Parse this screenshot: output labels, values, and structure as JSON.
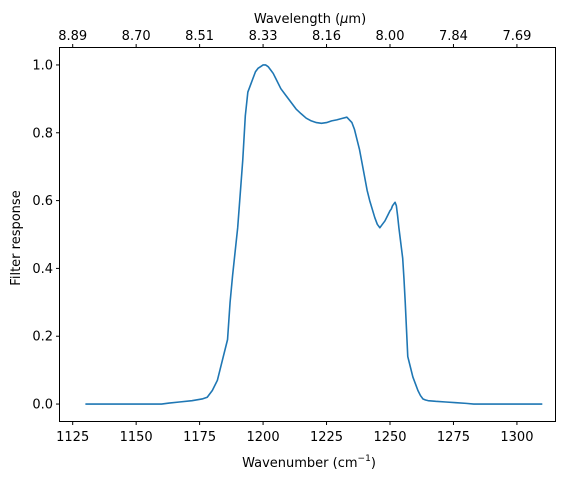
{
  "chart_data": {
    "type": "line",
    "title": "",
    "xlabel": "Wavenumber (cm",
    "xlabel_sup": "−1",
    "xlabel_close": ")",
    "ylabel": "Filter response",
    "top_xlabel": "Wavelength (",
    "top_xlabel_mu": "μ",
    "top_xlabel_unit": "m)",
    "xlim": [
      1120,
      1315
    ],
    "ylim": [
      -0.05,
      1.05
    ],
    "grid": false,
    "x_ticks": [
      1125,
      1150,
      1175,
      1200,
      1225,
      1250,
      1275,
      1300
    ],
    "x_tick_labels": [
      "1125",
      "1150",
      "1175",
      "1200",
      "1225",
      "1250",
      "1275",
      "1300"
    ],
    "y_ticks": [
      0.0,
      0.2,
      0.4,
      0.6,
      0.8,
      1.0
    ],
    "y_tick_labels": [
      "0.0",
      "0.2",
      "0.4",
      "0.6",
      "0.8",
      "1.0"
    ],
    "top_ticks_wavenumber": [
      1125,
      1150,
      1175,
      1200,
      1225,
      1250,
      1275,
      1300
    ],
    "top_tick_labels": [
      "8.89",
      "8.70",
      "8.51",
      "8.33",
      "8.16",
      "8.00",
      "7.84",
      "7.69"
    ],
    "series": [
      {
        "color": "#1f77b4",
        "x": [
          1130,
          1160,
          1163,
          1167,
          1172,
          1176,
          1178,
          1180,
          1182,
          1184,
          1186,
          1187,
          1188,
          1189,
          1190,
          1191,
          1192,
          1193,
          1194,
          1195,
          1196,
          1197,
          1198,
          1199,
          1200,
          1201,
          1202,
          1203,
          1204,
          1205,
          1207,
          1209,
          1211,
          1213,
          1215,
          1217,
          1219,
          1221,
          1223,
          1225,
          1227,
          1229,
          1231,
          1233,
          1235,
          1236,
          1237,
          1238,
          1239,
          1240,
          1241,
          1242,
          1243,
          1244,
          1245,
          1246,
          1247,
          1248,
          1249,
          1250,
          1250.5,
          1251,
          1251.5,
          1252,
          1252.5,
          1253,
          1253.5,
          1254,
          1254.5,
          1255,
          1255.5,
          1256,
          1256.5,
          1257,
          1258,
          1259,
          1260,
          1261,
          1262,
          1263,
          1264,
          1265,
          1268,
          1272,
          1276,
          1280,
          1283,
          1290,
          1300,
          1310
        ],
        "y": [
          0.0,
          0.0,
          0.003,
          0.006,
          0.01,
          0.015,
          0.02,
          0.04,
          0.07,
          0.13,
          0.19,
          0.3,
          0.38,
          0.45,
          0.52,
          0.62,
          0.72,
          0.85,
          0.92,
          0.94,
          0.96,
          0.98,
          0.99,
          0.995,
          1.0,
          1.0,
          0.995,
          0.985,
          0.975,
          0.96,
          0.93,
          0.91,
          0.89,
          0.87,
          0.856,
          0.843,
          0.835,
          0.83,
          0.828,
          0.83,
          0.835,
          0.838,
          0.842,
          0.846,
          0.83,
          0.81,
          0.78,
          0.75,
          0.71,
          0.67,
          0.63,
          0.6,
          0.575,
          0.55,
          0.53,
          0.52,
          0.53,
          0.54,
          0.555,
          0.57,
          0.575,
          0.585,
          0.59,
          0.595,
          0.585,
          0.555,
          0.52,
          0.49,
          0.46,
          0.43,
          0.37,
          0.3,
          0.22,
          0.14,
          0.11,
          0.08,
          0.06,
          0.04,
          0.025,
          0.015,
          0.012,
          0.01,
          0.008,
          0.006,
          0.004,
          0.002,
          0.0,
          0.0,
          0.0,
          0.0
        ]
      }
    ]
  }
}
